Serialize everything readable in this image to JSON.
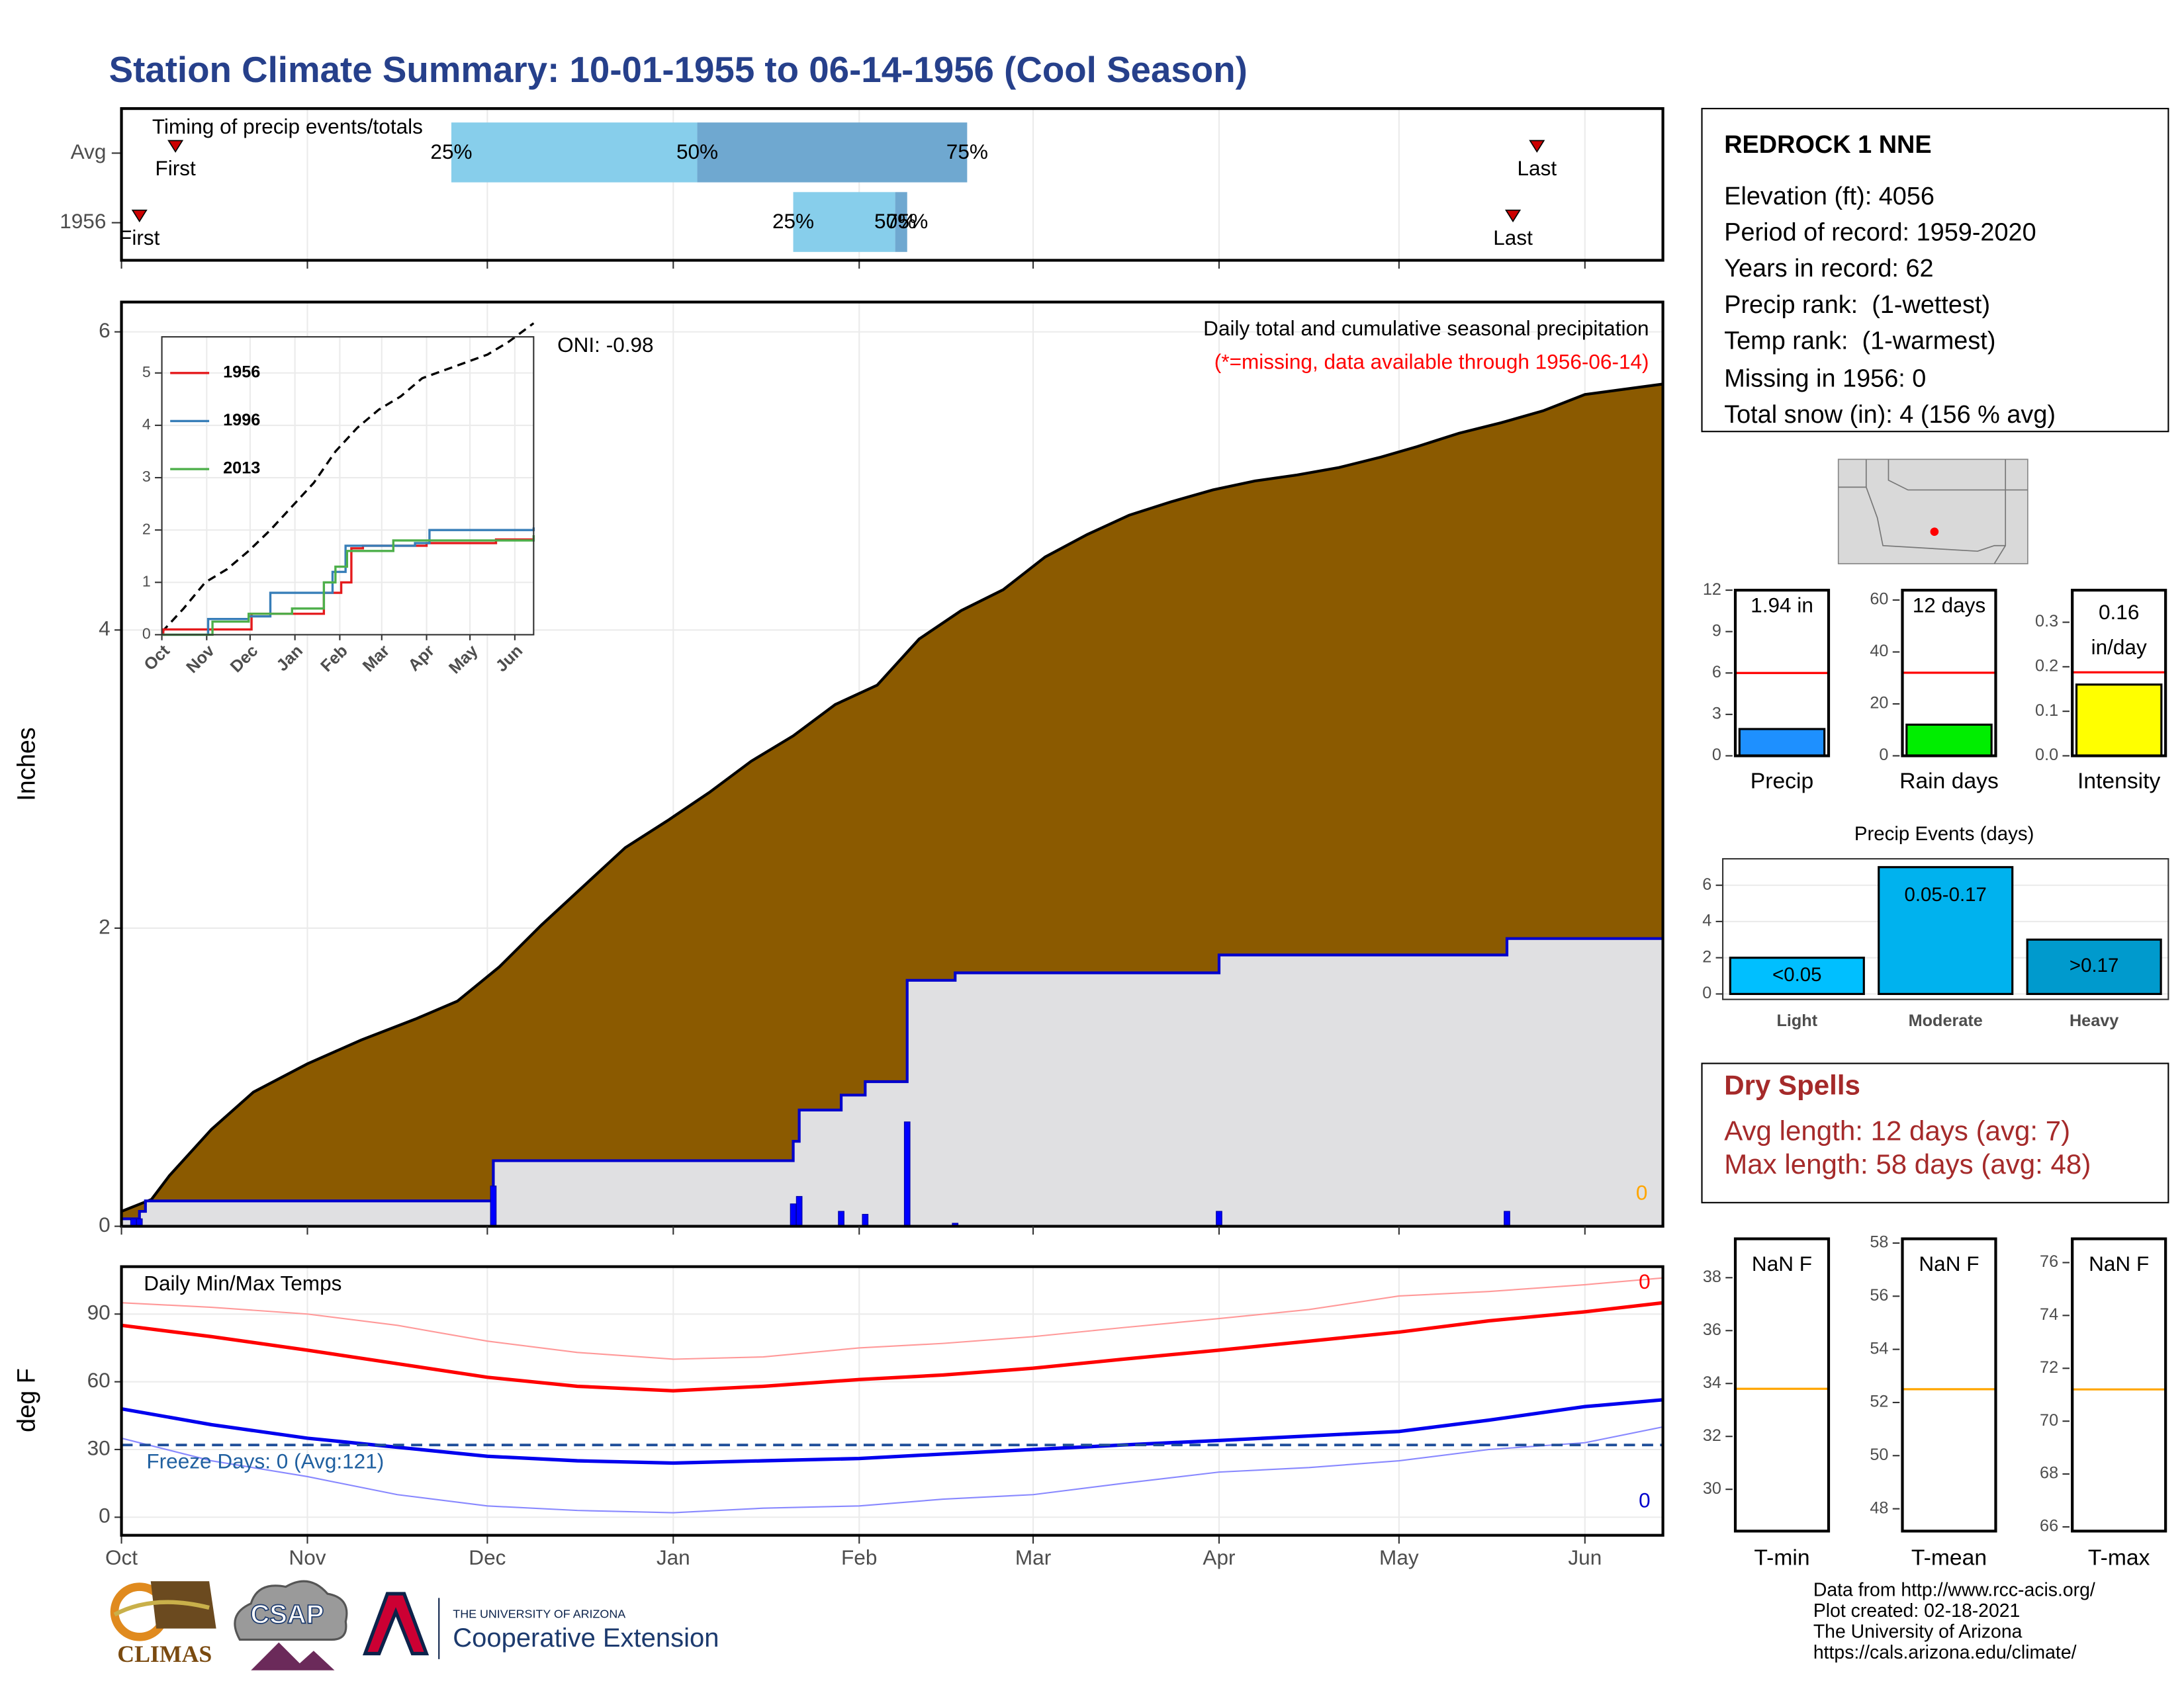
{
  "title": "Station Climate Summary: 10-01-1955 to 06-14-1956 (Cool Season)",
  "station": {
    "name": "REDROCK 1 NNE",
    "lines": [
      "Elevation (ft): 4056",
      "Period of record: 1959-2020",
      "Years in record: 62",
      "Precip rank:  (1-wettest)",
      "Temp rank:  (1-warmest)",
      "Missing in 1956: 0",
      "Total snow (in): 4 (156 % avg)"
    ]
  },
  "dry_spells": {
    "title": "Dry Spells",
    "lines": [
      "Avg length: 12 days (avg: 7)",
      "Max length: 58 days (avg: 48)"
    ]
  },
  "footer": [
    "Data from http://www.rcc-acis.org/",
    "Plot created: 02-18-2021",
    "The University of Arizona",
    "https://cals.arizona.edu/climate/"
  ],
  "logos": {
    "climas": "CLIMAS",
    "csap": "CSAP",
    "ua_small": "THE UNIVERSITY OF ARIZONA",
    "ua_large": "Cooperative Extension"
  },
  "chart_data": [
    {
      "type": "timing",
      "title": "Timing of precip events/totals",
      "xlim": [
        0,
        257
      ],
      "xticks": [
        0,
        31,
        61,
        92,
        123,
        152,
        183,
        213,
        244
      ],
      "quantile_labels": [
        "25%",
        "50%",
        "75%"
      ],
      "event_labels": [
        "First",
        "Last"
      ],
      "colors": [
        "#87ceeb",
        "#6fa8d0",
        "#cc0000"
      ],
      "rows": [
        {
          "name": "Avg",
          "first": 9,
          "q25": 55,
          "q50": 96,
          "q75": 141,
          "last": 236
        },
        {
          "name": "1956",
          "first": 3,
          "q25": 112,
          "q50": 129,
          "q75": 131,
          "last": 232
        }
      ]
    },
    {
      "type": "cumulative",
      "title": "Daily total and cumulative seasonal precipitation",
      "subtitle": "(*=missing, data available through 1956-06-14)",
      "annotation": "ONI: -0.98",
      "missing_count": 0,
      "ylabel": "Inches",
      "xlim": [
        0,
        257
      ],
      "xticks": [
        0,
        31,
        61,
        92,
        123,
        152,
        183,
        213,
        244
      ],
      "ylim": [
        0,
        6.2
      ],
      "yticks": [
        0,
        2,
        4,
        6
      ],
      "grid": true,
      "avg_cumulative": {
        "color": "#8b5a00",
        "x": [
          0,
          5,
          8,
          15,
          22,
          31,
          40,
          49,
          56,
          63,
          70,
          77,
          84,
          91,
          98,
          105,
          112,
          119,
          126,
          133,
          140,
          147,
          154,
          161,
          168,
          175,
          182,
          189,
          196,
          203,
          210,
          216,
          223,
          230,
          237,
          244,
          257
        ],
        "values": [
          0.1,
          0.18,
          0.34,
          0.65,
          0.9,
          1.09,
          1.25,
          1.39,
          1.51,
          1.74,
          2.02,
          2.28,
          2.54,
          2.72,
          2.91,
          3.12,
          3.29,
          3.5,
          3.63,
          3.94,
          4.13,
          4.27,
          4.49,
          4.64,
          4.77,
          4.86,
          4.94,
          5.0,
          5.04,
          5.09,
          5.16,
          5.23,
          5.32,
          5.39,
          5.47,
          5.58,
          5.65
        ]
      },
      "cumulative": {
        "color": "#0000cc",
        "fill": "#e0e0e2",
        "x": [
          0,
          3,
          4,
          62,
          112,
          113,
          120,
          124,
          131,
          139,
          183,
          231,
          257
        ],
        "values": [
          0.05,
          0.1,
          0.17,
          0.44,
          0.57,
          0.78,
          0.88,
          0.97,
          1.65,
          1.7,
          1.82,
          1.93,
          1.93
        ]
      },
      "daily": {
        "color": "#0000ff",
        "x": [
          2,
          3,
          62,
          112,
          113,
          120,
          124,
          131,
          139,
          183,
          231
        ],
        "values": [
          0.05,
          0.05,
          0.27,
          0.15,
          0.2,
          0.1,
          0.08,
          0.7,
          0.02,
          0.1,
          0.1
        ]
      },
      "inset": {
        "xlim": [
          0,
          257
        ],
        "xticks": [
          {
            "value": 0,
            "label": "Oct"
          },
          {
            "value": 31,
            "label": "Nov"
          },
          {
            "value": 61,
            "label": "Dec"
          },
          {
            "value": 92,
            "label": "Jan"
          },
          {
            "value": 123,
            "label": "Feb"
          },
          {
            "value": 152,
            "label": "Mar"
          },
          {
            "value": 183,
            "label": "Apr"
          },
          {
            "value": 213,
            "label": "May"
          },
          {
            "value": 244,
            "label": "Jun"
          }
        ],
        "ylim": [
          0,
          5.69
        ],
        "yticks": [
          0,
          1,
          2,
          3,
          4,
          5
        ],
        "avg": {
          "color": "#000000",
          "x": [
            0,
            15,
            30,
            45,
            60,
            75,
            90,
            105,
            120,
            135,
            150,
            165,
            180,
            195,
            210,
            225,
            240,
            257
          ],
          "values": [
            0.05,
            0.5,
            1.0,
            1.25,
            1.6,
            2.0,
            2.45,
            2.9,
            3.5,
            3.95,
            4.3,
            4.55,
            4.9,
            5.05,
            5.2,
            5.35,
            5.6,
            5.95
          ]
        },
        "series": [
          {
            "name": "1956",
            "color": "#e41a1c",
            "x": [
              0,
              1,
              62,
              112,
              124,
              131,
              139,
              183,
              231,
              257
            ],
            "values": [
              0,
              0.1,
              0.4,
              0.8,
              1.0,
              1.65,
              1.7,
              1.75,
              1.82,
              1.82
            ]
          },
          {
            "name": "1996",
            "color": "#377eb8",
            "x": [
              0,
              32,
              60,
              75,
              112,
              118,
              127,
              175,
              185,
              257
            ],
            "values": [
              0,
              0.3,
              0.35,
              0.8,
              0.8,
              1.2,
              1.7,
              1.75,
              2.0,
              2.05
            ]
          },
          {
            "name": "2013",
            "color": "#4daf4a",
            "x": [
              0,
              35,
              60,
              90,
              112,
              120,
              128,
              160,
              257
            ],
            "values": [
              0,
              0.25,
              0.4,
              0.5,
              1.0,
              1.3,
              1.6,
              1.8,
              1.9
            ]
          }
        ]
      }
    },
    {
      "type": "temps",
      "title": "Daily Min/Max Temps",
      "ylabel": "deg F",
      "freeze_label": "Freeze Days: 0 (Avg:121)",
      "freeze_threshold": 32,
      "max_count": 0,
      "min_count": 0,
      "xlim": [
        0,
        257
      ],
      "xticks": [
        {
          "value": 0,
          "label": "Oct"
        },
        {
          "value": 31,
          "label": "Nov"
        },
        {
          "value": 61,
          "label": "Dec"
        },
        {
          "value": 92,
          "label": "Jan"
        },
        {
          "value": 123,
          "label": "Feb"
        },
        {
          "value": 152,
          "label": "Mar"
        },
        {
          "value": 183,
          "label": "Apr"
        },
        {
          "value": 213,
          "label": "May"
        },
        {
          "value": 244,
          "label": "Jun"
        }
      ],
      "ylim": [
        -8,
        111
      ],
      "yticks": [
        0,
        30,
        60,
        90
      ],
      "grid": true,
      "series": [
        {
          "color": "#ff9999",
          "width": 1,
          "x": [
            0,
            15,
            31,
            46,
            61,
            76,
            92,
            107,
            123,
            137,
            152,
            167,
            183,
            198,
            213,
            228,
            244,
            257
          ],
          "values": [
            95,
            93,
            90,
            85,
            78,
            73,
            70,
            71,
            75,
            77,
            80,
            84,
            88,
            92,
            98,
            100,
            103,
            106
          ]
        },
        {
          "color": "#ff0000",
          "width": 2.5,
          "x": [
            0,
            15,
            31,
            46,
            61,
            76,
            92,
            107,
            123,
            137,
            152,
            167,
            183,
            198,
            213,
            228,
            244,
            257
          ],
          "values": [
            85,
            80,
            74,
            68,
            62,
            58,
            56,
            58,
            61,
            63,
            66,
            70,
            74,
            78,
            82,
            87,
            91,
            95
          ]
        },
        {
          "color": "#0000ee",
          "width": 2.5,
          "x": [
            0,
            15,
            31,
            46,
            61,
            76,
            92,
            107,
            123,
            137,
            152,
            167,
            183,
            198,
            213,
            228,
            244,
            257
          ],
          "values": [
            48,
            41,
            35,
            31,
            27,
            25,
            24,
            25,
            26,
            28,
            30,
            32,
            34,
            36,
            38,
            43,
            49,
            52
          ]
        },
        {
          "color": "#8888ff",
          "width": 1,
          "x": [
            0,
            15,
            31,
            46,
            61,
            76,
            92,
            107,
            123,
            137,
            152,
            167,
            183,
            198,
            213,
            228,
            244,
            257
          ],
          "values": [
            35,
            25,
            18,
            10,
            5,
            3,
            2,
            4,
            5,
            8,
            10,
            15,
            20,
            22,
            25,
            30,
            33,
            40
          ]
        }
      ]
    },
    {
      "type": "summary_bar",
      "name": "Precip",
      "value": 1.94,
      "value_label": [
        "1.94 in"
      ],
      "avg": 6,
      "ylim": [
        0,
        12
      ],
      "yticks": [
        0,
        3,
        6,
        9,
        12
      ],
      "color": "#1e90ff",
      "avg_color": "#ff0000"
    },
    {
      "type": "summary_bar",
      "name": "Rain days",
      "value": 12,
      "value_label": [
        "12 days"
      ],
      "avg": 32,
      "ylim": [
        0,
        63.8
      ],
      "yticks": [
        0,
        20,
        40,
        60
      ],
      "color": "#00ee00",
      "avg_color": "#ff0000"
    },
    {
      "type": "summary_bar",
      "name": "Intensity",
      "value": 0.16,
      "value_label": [
        "0.16",
        "in/day"
      ],
      "avg": 0.1875,
      "ylim": [
        0,
        0.372
      ],
      "yticks": [
        {
          "value": 0,
          "label": "0.0"
        },
        0.1,
        0.2,
        0.3
      ],
      "color": "#ffff00",
      "avg_color": "#ff0000"
    },
    {
      "type": "bar",
      "title": "Precip Events (days)",
      "categories": [
        "Light",
        "Moderate",
        "Heavy"
      ],
      "values": [
        2,
        7,
        3
      ],
      "value_labels": [
        "<0.05",
        "0.05-0.17",
        ">0.17"
      ],
      "colors": [
        "#00bfff",
        "#00b2ee",
        "#009acd"
      ],
      "ylim": [
        -0.3,
        7.46
      ],
      "yticks": [
        0,
        2,
        4,
        6
      ],
      "grid": true
    },
    {
      "type": "temp_summary",
      "name": "T-min",
      "value": null,
      "value_label": "NaN F",
      "avg": 33.8,
      "ylim": [
        28.42,
        39.47
      ],
      "yticks": [
        30,
        32,
        34,
        36,
        38
      ],
      "avg_color": "#ffa500"
    },
    {
      "type": "temp_summary",
      "name": "T-mean",
      "value": null,
      "value_label": "NaN F",
      "avg": 52.5,
      "ylim": [
        47.16,
        58.16
      ],
      "yticks": [
        48,
        50,
        52,
        54,
        56,
        58
      ],
      "avg_color": "#ffa500"
    },
    {
      "type": "temp_summary",
      "name": "T-max",
      "value": null,
      "value_label": "NaN F",
      "avg": 71.2,
      "ylim": [
        65.84,
        76.9
      ],
      "yticks": [
        66,
        68,
        70,
        72,
        74,
        76
      ],
      "avg_color": "#ffa500"
    }
  ]
}
